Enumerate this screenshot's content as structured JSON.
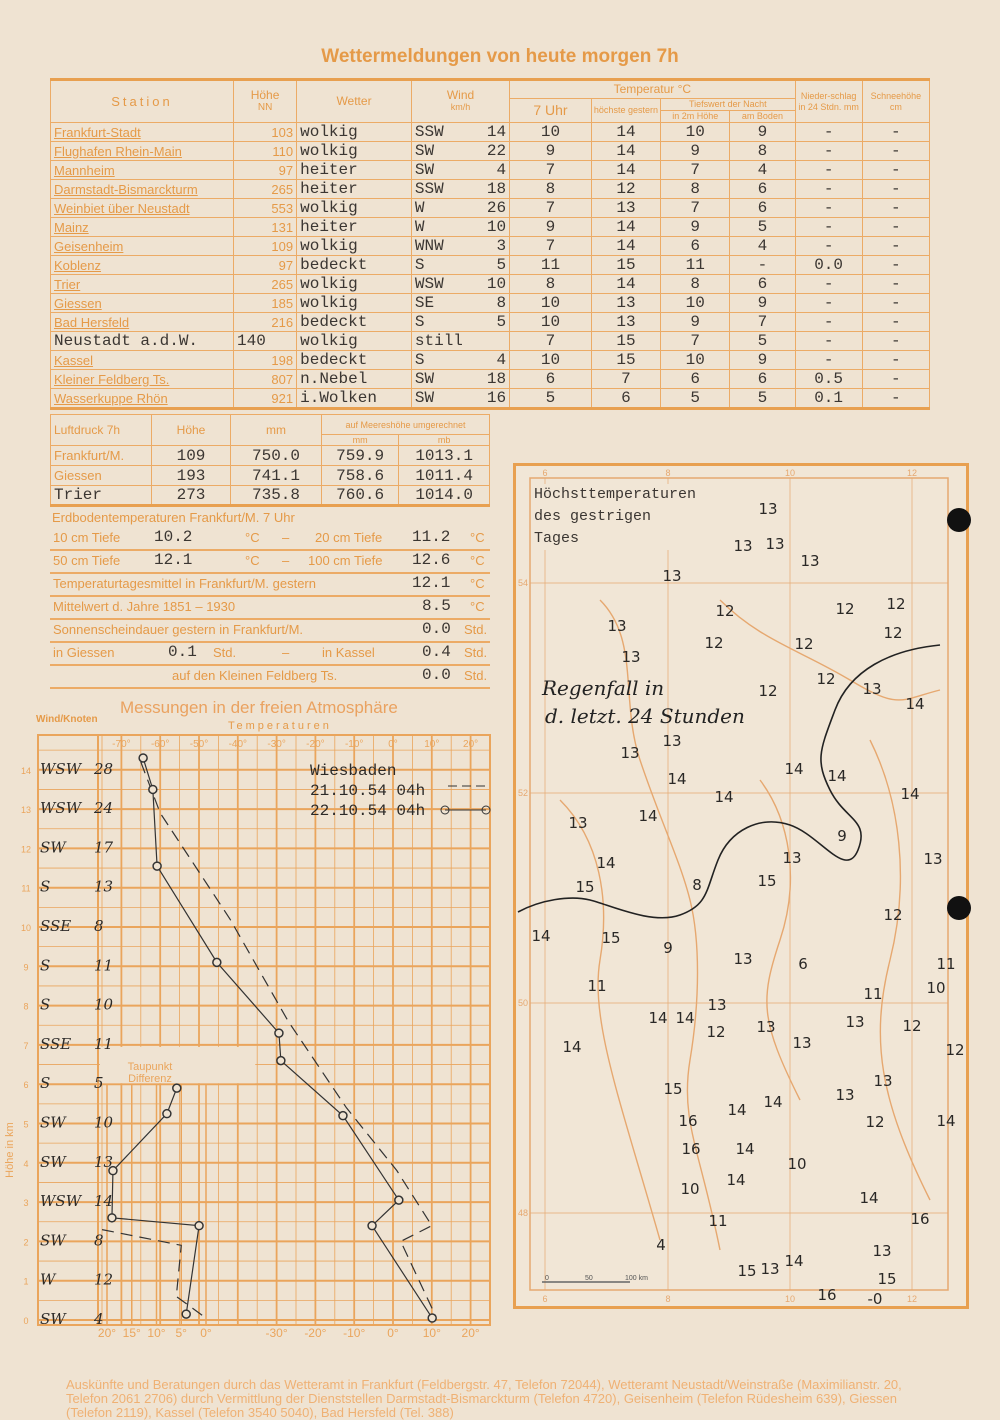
{
  "title": "Wettermeldungen von heute morgen 7h",
  "colors": {
    "paper": "#efe3d2",
    "print": "#e59a48",
    "ink": "#3b3632"
  },
  "main_table": {
    "headers": {
      "station": "Station",
      "hoehe": "Höhe",
      "hoehe_sub": "NN",
      "wetter": "Wetter",
      "wind": "Wind",
      "wind_sub": "km/h",
      "temperatur": "Temperatur °C",
      "uhr7": "7 Uhr",
      "hoechste": "höchste gestern",
      "tiefswert": "Tiefswert der Nacht",
      "in2m": "in 2m Höhe",
      "boden": "am Boden",
      "niederschlag": "Nieder-schlag in 24 Stdn. mm",
      "schnee": "Schneehöhe cm"
    },
    "rows": [
      {
        "station": "Frankfurt-Stadt",
        "hoehe": "103",
        "wetter": "wolkig",
        "wind_dir": "SSW",
        "wind_speed": "14",
        "t7": "10",
        "max": "14",
        "min2m": "10",
        "boden": "9",
        "nieder": "-",
        "schnee": "-"
      },
      {
        "station": "Flughafen Rhein-Main",
        "hoehe": "110",
        "wetter": "wolkig",
        "wind_dir": "SW",
        "wind_speed": "22",
        "t7": "9",
        "max": "14",
        "min2m": "9",
        "boden": "8",
        "nieder": "-",
        "schnee": "-"
      },
      {
        "station": "Mannheim",
        "hoehe": "97",
        "wetter": "heiter",
        "wind_dir": "SW",
        "wind_speed": "4",
        "t7": "7",
        "max": "14",
        "min2m": "7",
        "boden": "4",
        "nieder": "-",
        "schnee": "-"
      },
      {
        "station": "Darmstadt-Bismarckturm",
        "hoehe": "265",
        "wetter": "heiter",
        "wind_dir": "SSW",
        "wind_speed": "18",
        "t7": "8",
        "max": "12",
        "min2m": "8",
        "boden": "6",
        "nieder": "-",
        "schnee": "-"
      },
      {
        "station": "Weinbiet über Neustadt",
        "hoehe": "553",
        "wetter": "wolkig",
        "wind_dir": "W",
        "wind_speed": "26",
        "t7": "7",
        "max": "13",
        "min2m": "7",
        "boden": "6",
        "nieder": "-",
        "schnee": "-"
      },
      {
        "station": "Mainz",
        "hoehe": "131",
        "wetter": "heiter",
        "wind_dir": "W",
        "wind_speed": "10",
        "t7": "9",
        "max": "14",
        "min2m": "9",
        "boden": "5",
        "nieder": "-",
        "schnee": "-"
      },
      {
        "station": "Geisenheim",
        "hoehe": "109",
        "wetter": "wolkig",
        "wind_dir": "WNW",
        "wind_speed": "3",
        "t7": "7",
        "max": "14",
        "min2m": "6",
        "boden": "4",
        "nieder": "-",
        "schnee": "-"
      },
      {
        "station": "Koblenz",
        "hoehe": "97",
        "wetter": "bedeckt",
        "wind_dir": "S",
        "wind_speed": "5",
        "t7": "11",
        "max": "15",
        "min2m": "11",
        "boden": "-",
        "nieder": "0.0",
        "schnee": "-"
      },
      {
        "station": "Trier",
        "hoehe": "265",
        "wetter": "wolkig",
        "wind_dir": "WSW",
        "wind_speed": "10",
        "t7": "8",
        "max": "14",
        "min2m": "8",
        "boden": "6",
        "nieder": "-",
        "schnee": "-"
      },
      {
        "station": "Giessen",
        "hoehe": "185",
        "wetter": "wolkig",
        "wind_dir": "SE",
        "wind_speed": "8",
        "t7": "10",
        "max": "13",
        "min2m": "10",
        "boden": "9",
        "nieder": "-",
        "schnee": "-"
      },
      {
        "station": "Bad Hersfeld",
        "hoehe": "216",
        "wetter": "bedeckt",
        "wind_dir": "S",
        "wind_speed": "5",
        "t7": "10",
        "max": "13",
        "min2m": "9",
        "boden": "7",
        "nieder": "-",
        "schnee": "-"
      },
      {
        "station": "Neustadt a.d.W.",
        "hoehe": "140",
        "wetter": "wolkig",
        "wind_dir": "still",
        "wind_speed": "",
        "t7": "7",
        "max": "15",
        "min2m": "7",
        "boden": "5",
        "nieder": "-",
        "schnee": "-",
        "typed": true
      },
      {
        "station": "Kassel",
        "hoehe": "198",
        "wetter": "bedeckt",
        "wind_dir": "S",
        "wind_speed": "4",
        "t7": "10",
        "max": "15",
        "min2m": "10",
        "boden": "9",
        "nieder": "-",
        "schnee": "-"
      },
      {
        "station": "Kleiner Feldberg Ts.",
        "hoehe": "807",
        "wetter": "n.Nebel",
        "wind_dir": "SW",
        "wind_speed": "18",
        "t7": "6",
        "max": "7",
        "min2m": "6",
        "boden": "6",
        "nieder": "0.5",
        "schnee": "-"
      },
      {
        "station": "Wasserkuppe Rhön",
        "hoehe": "921",
        "wetter": "i.Wolken",
        "wind_dir": "SW",
        "wind_speed": "16",
        "t7": "5",
        "max": "6",
        "min2m": "5",
        "boden": "5",
        "nieder": "0.1",
        "schnee": "-"
      }
    ]
  },
  "pressure": {
    "headers": {
      "label": "Luftdruck 7h",
      "hoehe": "Höhe",
      "mm": "mm",
      "sea": "auf Meereshöhe umgerechnet",
      "sea_mm": "mm",
      "sea_mb": "mb"
    },
    "rows": [
      {
        "station": "Frankfurt/M.",
        "hoehe": "109",
        "mm": "750.0",
        "sea_mm": "759.9",
        "sea_mb": "1013.1"
      },
      {
        "station": "Giessen",
        "hoehe": "193",
        "mm": "741.1",
        "sea_mm": "758.6",
        "sea_mb": "1011.4"
      },
      {
        "station": "Trier",
        "hoehe": "273",
        "mm": "735.8",
        "sea_mm": "760.6",
        "sea_mb": "1014.0"
      }
    ]
  },
  "soil": {
    "title": "Erdbodentemperaturen Frankfurt/M. 7 Uhr",
    "t10_label": "10 cm Tiefe",
    "t10": "10.2",
    "t20_label": "20 cm Tiefe",
    "t20": "11.2",
    "t50_label": "50 cm Tiefe",
    "t50": "12.1",
    "t100_label": "100 cm Tiefe",
    "t100": "12.6",
    "unit_c": "°C",
    "dash": "–"
  },
  "stats": {
    "mean_label": "Temperaturtagesmittel in Frankfurt/M. gestern",
    "mean": "12.1",
    "longterm_label": "Mittelwert d. Jahre 1851 – 1930",
    "longterm": "8.5",
    "sun_label": "Sonnenscheindauer gestern in Frankfurt/M.",
    "sun_ffm": "0.0",
    "giessen_label": "in Giessen",
    "sun_giessen": "0.1",
    "kassel_label": "in Kassel",
    "sun_kassel": "0.4",
    "feldberg_label": "auf den Kleinen Feldberg Ts.",
    "sun_feldberg": "0.0",
    "unit_std": "Std."
  },
  "aero": {
    "title": "Messungen in der freien Atmosphäre",
    "wind_label": "Wind/Knoten",
    "temp_label": "Temperaturen",
    "height_label": "Höhe in km",
    "dew_label_1": "Taupunkt",
    "dew_label_2": "Differenz",
    "station": "Wiesbaden",
    "date1": "21.10.54 04h",
    "date2": "22.10.54 04h",
    "temp_ticks": [
      "-70°",
      "-60°",
      "-50°",
      "-40°",
      "-30°",
      "-20°",
      "-10°",
      "0°",
      "10°",
      "20°"
    ],
    "bottom_temp_ticks": [
      "-30°",
      "-20°",
      "-10°",
      "0°",
      "10°",
      "20°"
    ],
    "dew_ticks": [
      "20°",
      "15°",
      "10°",
      "5°",
      "0°"
    ],
    "height_ticks": [
      "0",
      "1",
      "2",
      "3",
      "4",
      "5",
      "6",
      "7",
      "8",
      "9",
      "10",
      "11",
      "12",
      "13",
      "14"
    ],
    "winds": [
      {
        "dir": "WSW",
        "kn": "28"
      },
      {
        "dir": "WSW",
        "kn": "24"
      },
      {
        "dir": "SW",
        "kn": "17"
      },
      {
        "dir": "S",
        "kn": "13"
      },
      {
        "dir": "SSE",
        "kn": "8"
      },
      {
        "dir": "S",
        "kn": "11"
      },
      {
        "dir": "S",
        "kn": "10"
      },
      {
        "dir": "SSE",
        "kn": "11"
      },
      {
        "dir": "S",
        "kn": "5"
      },
      {
        "dir": "SW",
        "kn": "10"
      },
      {
        "dir": "SW",
        "kn": "13"
      },
      {
        "dir": "WSW",
        "kn": "14"
      },
      {
        "dir": "SW",
        "kn": "8"
      },
      {
        "dir": "W",
        "kn": "12"
      },
      {
        "dir": "SW",
        "kn": "4"
      }
    ],
    "chart_data": {
      "type": "line",
      "temp_22": [
        [
          -64.4,
          14.3
        ],
        [
          -61.9,
          13.5
        ],
        [
          -60.8,
          11.55
        ],
        [
          -45.4,
          9.1
        ],
        [
          -29.4,
          7.3
        ],
        [
          -28.9,
          6.6
        ],
        [
          -12.9,
          5.2
        ],
        [
          1.5,
          3.05
        ],
        [
          -5.4,
          2.4
        ],
        [
          10.1,
          0.05
        ]
      ],
      "temp_21": [
        [
          -65,
          14.2
        ],
        [
          -60,
          12.9
        ],
        [
          -42,
          10.2
        ],
        [
          -27,
          7.6
        ],
        [
          -12,
          5.4
        ],
        [
          1,
          3.8
        ],
        [
          10,
          2.4
        ],
        [
          2,
          2.0
        ],
        [
          11,
          0.1
        ]
      ],
      "dew_22": [
        [
          5.9,
          5.9
        ],
        [
          7.9,
          5.25
        ],
        [
          18.8,
          3.8
        ],
        [
          19,
          2.6
        ],
        [
          1.4,
          2.4
        ],
        [
          4,
          0.15
        ]
      ],
      "dew_21": [
        [
          21,
          2.3
        ],
        [
          5,
          1.9
        ],
        [
          6,
          0.6
        ],
        [
          0,
          0.05
        ]
      ]
    }
  },
  "map": {
    "title": "Höchsttemperaturen des gestrigen Tages",
    "rain_note_1": "Regenfall in",
    "rain_note_2": "d. letzt. 24 Stunden",
    "lon_ticks": [
      "6",
      "8",
      "10",
      "12"
    ],
    "lat_ticks": [
      "54",
      "52",
      "50",
      "48"
    ],
    "scale": [
      "0",
      "50",
      "100 km"
    ],
    "temperatures": [
      "13",
      "13",
      "13",
      "13",
      "13",
      "12",
      "12",
      "12",
      "13",
      "12",
      "12",
      "12",
      "13",
      "12",
      "12",
      "13",
      "14",
      "13",
      "13",
      "14",
      "14",
      "14",
      "14",
      "14",
      "13",
      "14",
      "9",
      "14",
      "13",
      "15",
      "13",
      "15",
      "8",
      "12",
      "14",
      "15",
      "9",
      "13",
      "6",
      "11",
      "11",
      "11",
      "10",
      "13",
      "14",
      "14",
      "12",
      "13",
      "13",
      "13",
      "12",
      "12",
      "14",
      "15",
      "13",
      "14",
      "14",
      "13",
      "14",
      "12",
      "16",
      "14",
      "16",
      "10",
      "10",
      "14",
      "14",
      "16",
      "11",
      "13",
      "4",
      "14",
      "15",
      "13",
      "15",
      "16",
      "-0"
    ]
  },
  "footer": "Auskünfte und Beratungen durch das Wetteramt in Frankfurt (Feldbergstr. 47, Telefon 72044), Wetteramt Neustadt/Weinstraße (Maximilianstr. 20, Telefon 2061 2706) durch Vermittlung der Dienststellen Darmstadt-Bismarckturm (Telefon 4720), Geisenheim (Telefon Rüdesheim 639), Giessen (Telefon 2119), Kassel (Telefon 3540 5040), Bad Hersfeld (Tel. 388)"
}
